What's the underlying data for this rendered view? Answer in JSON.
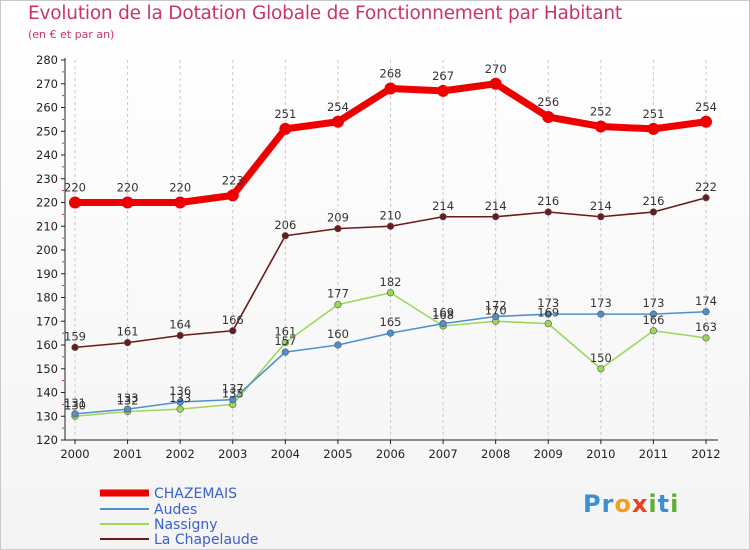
{
  "header": {
    "title": "Evolution de la Dotation Globale de Fonctionnement par Habitant",
    "subtitle": "(en € et par an)"
  },
  "logo": {
    "text": "Proxiti",
    "colors": [
      "#3a8fd6",
      "#f0a020",
      "#e84020",
      "#60b030"
    ]
  },
  "chart_data": {
    "type": "line",
    "title": "Evolution de la Dotation Globale de Fonctionnement par Habitant",
    "subtitle": "(en € et par an)",
    "xlabel": "",
    "ylabel": "",
    "ylim": [
      120,
      280
    ],
    "yticks": [
      120,
      130,
      140,
      150,
      160,
      170,
      180,
      190,
      200,
      210,
      220,
      230,
      240,
      250,
      260,
      270,
      280
    ],
    "grid": "vertical dashed",
    "legend_position": "bottom-left",
    "categories": [
      "2000",
      "2001",
      "2002",
      "2003",
      "2004",
      "2005",
      "2006",
      "2007",
      "2008",
      "2009",
      "2010",
      "2011",
      "2012"
    ],
    "series": [
      {
        "name": "CHAZEMAIS",
        "color": "#ee0000",
        "values": [
          220,
          220,
          220,
          223,
          251,
          254,
          268,
          267,
          270,
          256,
          252,
          251,
          254
        ],
        "labels": [
          "220",
          "220",
          "220",
          "223",
          "251",
          "254",
          "268",
          "267",
          "270",
          "256",
          "252",
          "251",
          "254"
        ]
      },
      {
        "name": "Audes",
        "color": "#4f90cc",
        "values": [
          131,
          133,
          136,
          137,
          157,
          160,
          165,
          169,
          172,
          173,
          173,
          173,
          174
        ],
        "labels": [
          "131",
          "133",
          "136",
          "137",
          "157",
          "160",
          "165",
          "169",
          "172",
          "173",
          "173",
          "173",
          "174"
        ]
      },
      {
        "name": "Nassigny",
        "color": "#9ad85a",
        "values": [
          130,
          132,
          133,
          135,
          161,
          177,
          182,
          168,
          170,
          169,
          150,
          166,
          163
        ],
        "labels": [
          "130",
          "132",
          "133",
          "135",
          "161",
          "177",
          "182",
          "168",
          "170",
          "169",
          "150",
          "166",
          "163"
        ]
      },
      {
        "name": "La Chapelaude",
        "color": "#6a1a1a",
        "values": [
          159,
          161,
          164,
          166,
          206,
          209,
          210,
          214,
          214,
          216,
          214,
          216,
          222
        ],
        "labels": [
          "159",
          "161",
          "164",
          "166",
          "206",
          "209",
          "210",
          "214",
          "214",
          "216",
          "214",
          "216",
          "222"
        ]
      }
    ]
  }
}
